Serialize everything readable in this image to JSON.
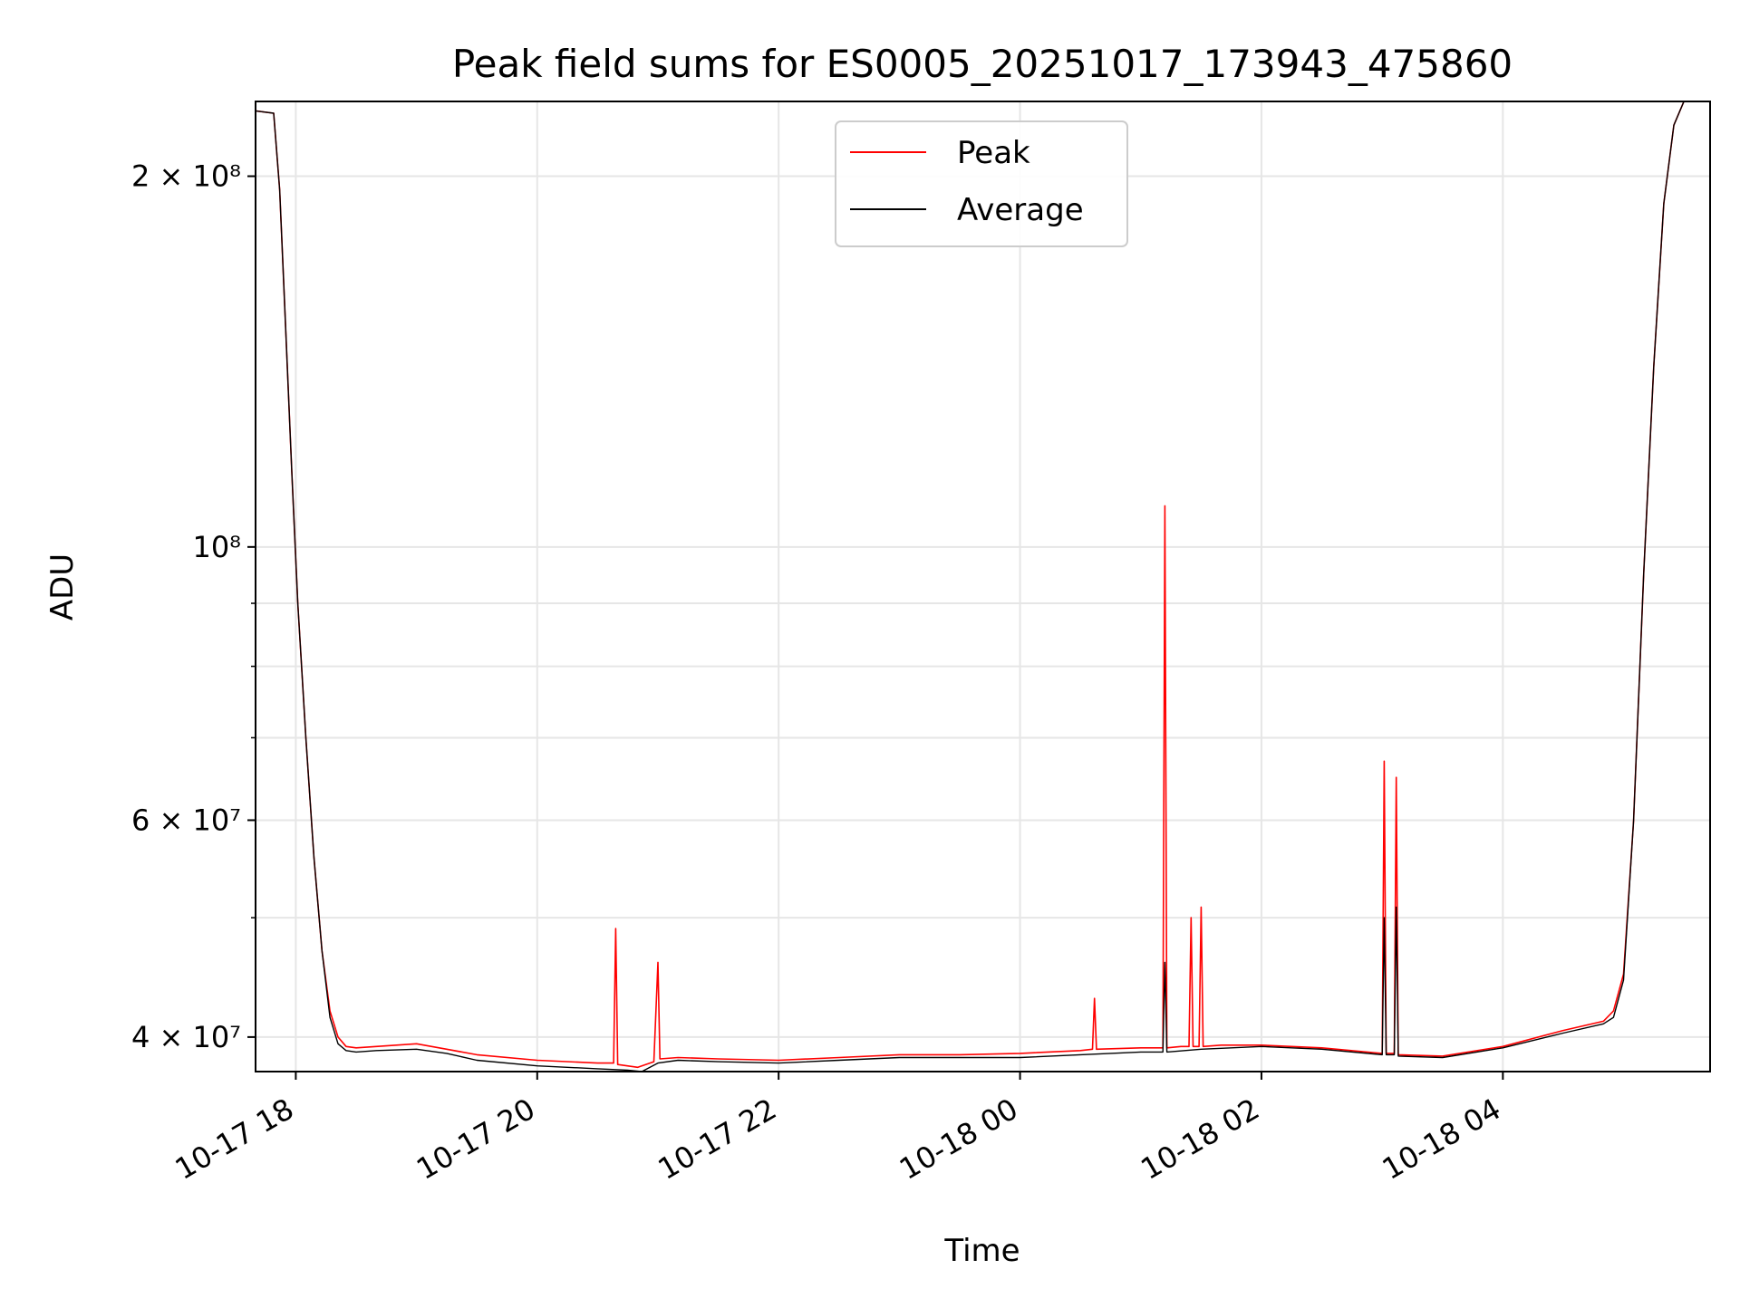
{
  "chart_data": {
    "type": "line",
    "title": "Peak field sums for ES0005_20251017_173943_475860",
    "xlabel": "Time",
    "ylabel": "ADU",
    "xlim": [
      "2025-10-17 17:40",
      "2025-10-18 05:43"
    ],
    "ylim": [
      37500000,
      230000000
    ],
    "yscale": "log",
    "grid": true,
    "legend_position": "upper center",
    "x_ticks": [
      {
        "value": "2025-10-17 18:00",
        "label": "10-17 18"
      },
      {
        "value": "2025-10-17 20:00",
        "label": "10-17 20"
      },
      {
        "value": "2025-10-17 22:00",
        "label": "10-17 22"
      },
      {
        "value": "2025-10-18 00:00",
        "label": "10-18 00"
      },
      {
        "value": "2025-10-18 02:00",
        "label": "10-18 02"
      },
      {
        "value": "2025-10-18 04:00",
        "label": "10-18 04"
      }
    ],
    "y_ticks": [
      {
        "value": 40000000,
        "label": "4 × 10⁷"
      },
      {
        "value": 60000000,
        "label": "6 × 10⁷"
      },
      {
        "value": 100000000,
        "label": "10⁸"
      },
      {
        "value": 200000000,
        "label": "2 × 10⁸"
      }
    ],
    "y_minor_ticks": [
      50000000,
      70000000,
      80000000,
      90000000
    ],
    "series": [
      {
        "name": "Peak",
        "color": "#ff0000",
        "x": [
          "2025-10-17 17:40",
          "2025-10-17 17:49",
          "2025-10-17 17:52",
          "2025-10-17 17:55",
          "2025-10-17 17:58",
          "2025-10-17 18:01",
          "2025-10-17 18:05",
          "2025-10-17 18:09",
          "2025-10-17 18:13",
          "2025-10-17 18:17",
          "2025-10-17 18:21",
          "2025-10-17 18:25",
          "2025-10-17 18:30",
          "2025-10-17 18:40",
          "2025-10-17 19:00",
          "2025-10-17 19:15",
          "2025-10-17 19:30",
          "2025-10-17 20:00",
          "2025-10-17 20:30",
          "2025-10-17 20:38",
          "2025-10-17 20:39",
          "2025-10-17 20:40",
          "2025-10-17 20:50",
          "2025-10-17 20:58",
          "2025-10-17 21:00",
          "2025-10-17 21:01",
          "2025-10-17 21:10",
          "2025-10-17 21:30",
          "2025-10-17 22:00",
          "2025-10-17 22:30",
          "2025-10-17 23:00",
          "2025-10-17 23:30",
          "2025-10-18 00:00",
          "2025-10-18 00:30",
          "2025-10-18 00:36",
          "2025-10-18 00:37",
          "2025-10-18 00:38",
          "2025-10-18 01:00",
          "2025-10-18 01:11",
          "2025-10-18 01:12",
          "2025-10-18 01:13",
          "2025-10-18 01:20",
          "2025-10-18 01:24",
          "2025-10-18 01:25",
          "2025-10-18 01:26",
          "2025-10-18 01:29",
          "2025-10-18 01:30",
          "2025-10-18 01:31",
          "2025-10-18 01:40",
          "2025-10-18 02:00",
          "2025-10-18 02:30",
          "2025-10-18 03:00",
          "2025-10-18 03:01",
          "2025-10-18 03:02",
          "2025-10-18 03:06",
          "2025-10-18 03:07",
          "2025-10-18 03:08",
          "2025-10-18 03:30",
          "2025-10-18 04:00",
          "2025-10-18 04:30",
          "2025-10-18 04:50",
          "2025-10-18 04:55",
          "2025-10-18 05:00",
          "2025-10-18 05:05",
          "2025-10-18 05:10",
          "2025-10-18 05:15",
          "2025-10-18 05:20",
          "2025-10-18 05:25",
          "2025-10-18 05:30",
          "2025-10-18 05:35",
          "2025-10-18 05:43"
        ],
        "values": [
          226000000,
          225000000,
          195000000,
          150000000,
          115000000,
          90000000,
          70000000,
          56000000,
          47000000,
          42000000,
          40000000,
          39300000,
          39200000,
          39300000,
          39500000,
          39100000,
          38700000,
          38300000,
          38100000,
          38100000,
          49000000,
          38000000,
          37800000,
          38200000,
          46000000,
          38400000,
          38500000,
          38400000,
          38300000,
          38500000,
          38700000,
          38700000,
          38800000,
          39000000,
          39100000,
          43000000,
          39100000,
          39200000,
          39200000,
          108000000,
          39200000,
          39300000,
          39300000,
          50000000,
          39300000,
          39300000,
          51000000,
          39300000,
          39400000,
          39400000,
          39200000,
          38800000,
          67000000,
          38800000,
          38800000,
          65000000,
          38700000,
          38600000,
          39300000,
          40500000,
          41200000,
          42000000,
          45000000,
          60000000,
          95000000,
          140000000,
          190000000,
          220000000,
          230000000,
          230000000,
          230000000
        ]
      },
      {
        "name": "Average",
        "color": "#000000",
        "x": [
          "2025-10-17 17:40",
          "2025-10-17 17:49",
          "2025-10-17 17:52",
          "2025-10-17 17:55",
          "2025-10-17 17:58",
          "2025-10-17 18:01",
          "2025-10-17 18:05",
          "2025-10-17 18:09",
          "2025-10-17 18:13",
          "2025-10-17 18:17",
          "2025-10-17 18:21",
          "2025-10-17 18:25",
          "2025-10-17 18:30",
          "2025-10-17 18:40",
          "2025-10-17 19:00",
          "2025-10-17 19:15",
          "2025-10-17 19:30",
          "2025-10-17 20:00",
          "2025-10-17 20:30",
          "2025-10-17 20:45",
          "2025-10-17 20:52",
          "2025-10-17 21:00",
          "2025-10-17 21:10",
          "2025-10-17 21:30",
          "2025-10-17 22:00",
          "2025-10-17 22:30",
          "2025-10-17 23:00",
          "2025-10-17 23:30",
          "2025-10-18 00:00",
          "2025-10-18 00:30",
          "2025-10-18 01:00",
          "2025-10-18 01:11",
          "2025-10-18 01:12",
          "2025-10-18 01:13",
          "2025-10-18 01:30",
          "2025-10-18 02:00",
          "2025-10-18 02:30",
          "2025-10-18 03:00",
          "2025-10-18 03:01",
          "2025-10-18 03:02",
          "2025-10-18 03:06",
          "2025-10-18 03:07",
          "2025-10-18 03:08",
          "2025-10-18 03:30",
          "2025-10-18 04:00",
          "2025-10-18 04:30",
          "2025-10-18 04:50",
          "2025-10-18 04:55",
          "2025-10-18 05:00",
          "2025-10-18 05:05",
          "2025-10-18 05:10",
          "2025-10-18 05:15",
          "2025-10-18 05:20",
          "2025-10-18 05:25",
          "2025-10-18 05:30",
          "2025-10-18 05:35",
          "2025-10-18 05:43"
        ],
        "values": [
          226000000,
          225000000,
          195000000,
          150000000,
          115000000,
          90000000,
          70000000,
          56000000,
          47000000,
          41500000,
          39500000,
          39000000,
          38900000,
          39000000,
          39100000,
          38800000,
          38300000,
          37900000,
          37700000,
          37600000,
          37500000,
          38100000,
          38300000,
          38200000,
          38100000,
          38300000,
          38500000,
          38500000,
          38500000,
          38700000,
          38900000,
          38900000,
          46000000,
          38900000,
          39100000,
          39300000,
          39100000,
          38700000,
          50000000,
          38700000,
          38700000,
          51000000,
          38600000,
          38500000,
          39200000,
          40300000,
          41000000,
          41500000,
          44500000,
          60000000,
          95000000,
          140000000,
          190000000,
          220000000,
          230000000,
          230000000,
          230000000
        ]
      }
    ]
  }
}
